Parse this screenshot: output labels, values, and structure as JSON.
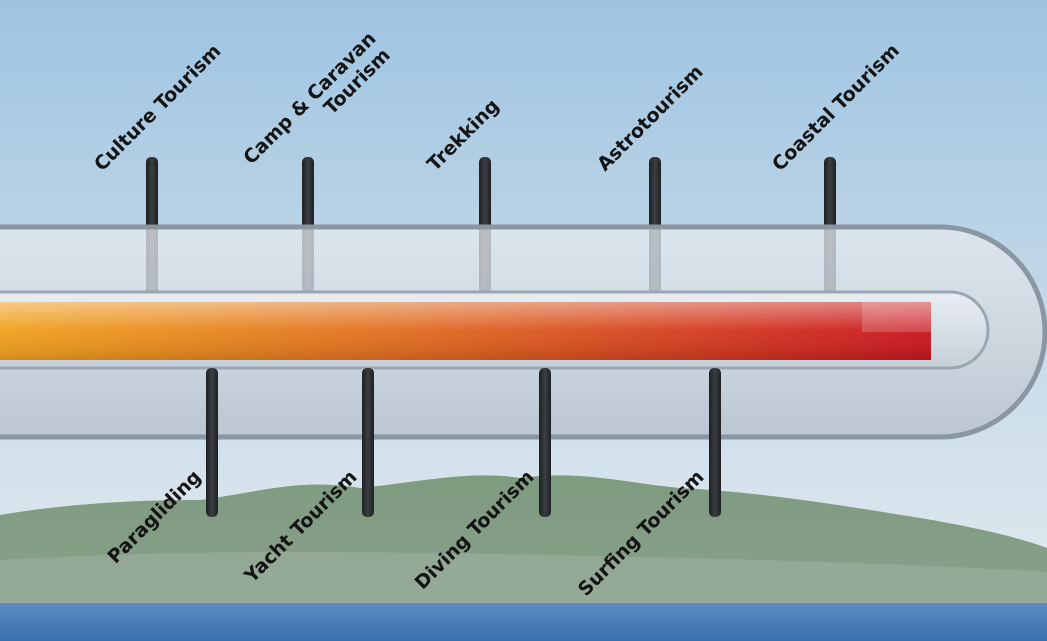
{
  "tourism_types_top": [
    "Culture Tourism",
    "Camp & Caravan Tourism",
    "Trekking",
    "Astrotourism",
    "Coastal Tourism"
  ],
  "tourism_types_bottom": [
    "Paragliding",
    "Yacht Tourism",
    "Diving Tourism",
    "Surfing Tourism"
  ],
  "colors": {
    "sky_top": "#9ec4e2",
    "sky_bottom": "#dfeaf1",
    "mountain": "#6f8f74",
    "sea": "#3f78b8",
    "tube": "#c9d4de",
    "tube_border": "#8a96a2",
    "fill_start": "#f0a21c",
    "fill_end": "#c8141e",
    "marker": "#2a2c2f"
  }
}
